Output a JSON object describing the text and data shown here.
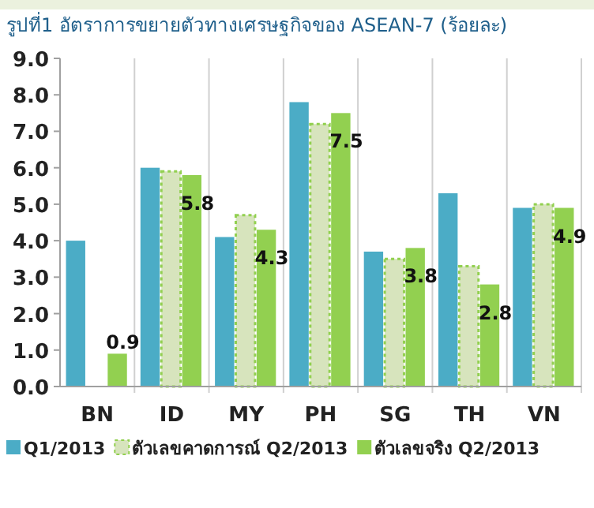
{
  "chart_data": {
    "type": "bar",
    "title": "รูปที่1 อัตราการขยายตัวทางเศรษฐกิจของ ASEAN-7 (ร้อยละ)",
    "categories": [
      "BN",
      "ID",
      "MY",
      "PH",
      "SG",
      "TH",
      "VN"
    ],
    "series": [
      {
        "name": "Q1/2013",
        "color": "#4bacc6",
        "values": [
          4.0,
          6.0,
          4.1,
          7.8,
          3.7,
          5.3,
          4.9
        ]
      },
      {
        "name": "ตัวเลขคาดการณ์ Q2/2013",
        "color": "#d7e4bd",
        "values": [
          null,
          5.9,
          4.7,
          7.2,
          3.5,
          3.3,
          5.0
        ]
      },
      {
        "name": "ตัวเลขจริง Q2/2013",
        "color": "#92d050",
        "values": [
          0.9,
          5.8,
          4.3,
          7.5,
          3.8,
          2.8,
          4.9
        ],
        "value_labels": [
          "0.9",
          "5.8",
          "4.3",
          "7.5",
          "3.8",
          "2.8",
          "4.9"
        ]
      }
    ],
    "ylim": [
      0,
      9
    ],
    "yticks": [
      {
        "value": 0,
        "label": "0.0"
      },
      {
        "value": 1,
        "label": "1.0"
      },
      {
        "value": 2,
        "label": "2.0"
      },
      {
        "value": 3,
        "label": "3.0"
      },
      {
        "value": 4,
        "label": "4.0"
      },
      {
        "value": 5,
        "label": "5.0"
      },
      {
        "value": 6,
        "label": "6.0"
      },
      {
        "value": 7,
        "label": "7.0"
      },
      {
        "value": 8,
        "label": "8.0"
      },
      {
        "value": 9,
        "label": "9.0"
      }
    ],
    "legend": "bottom"
  }
}
